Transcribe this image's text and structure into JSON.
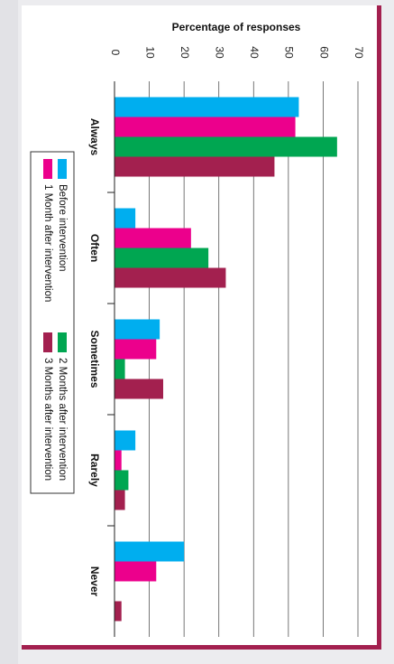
{
  "chart_data": {
    "type": "bar",
    "orientation": "horizontal",
    "title": "",
    "xlabel": "Percentage of responses",
    "ylabel": "",
    "xlim": [
      0,
      70
    ],
    "xticks": [
      0,
      10,
      20,
      30,
      40,
      50,
      60,
      70
    ],
    "grid": true,
    "legend_position": "left",
    "categories": [
      "Always",
      "Often",
      "Sometimes",
      "Rarely",
      "Never"
    ],
    "series": [
      {
        "name": "Before intervention",
        "color": "#00aeef",
        "values": [
          53,
          6,
          13,
          6,
          20
        ]
      },
      {
        "name": "1 Month after intervention",
        "color": "#ec008c",
        "values": [
          52,
          22,
          12,
          2,
          12
        ]
      },
      {
        "name": "2 Months after intervention",
        "color": "#00a651",
        "values": [
          64,
          27,
          3,
          4,
          0
        ]
      },
      {
        "name": "3 Months after intervention",
        "color": "#a3204f",
        "values": [
          46,
          32,
          14,
          3,
          2
        ]
      }
    ]
  }
}
